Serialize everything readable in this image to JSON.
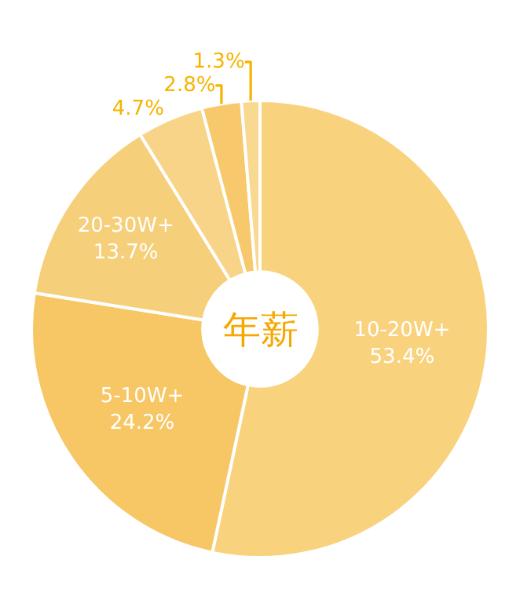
{
  "chart_data": {
    "type": "donut",
    "title": "年薪",
    "categories": [
      "10-20W+",
      "5-10W+",
      "20-30W+",
      null,
      null,
      null
    ],
    "values": [
      53.4,
      24.2,
      13.7,
      4.7,
      2.8,
      1.3
    ],
    "value_labels": [
      "53.4%",
      "24.2%",
      "13.7%",
      "4.7%",
      "2.8%",
      "1.3%"
    ],
    "colors": [
      "#f9d27e",
      "#f7c665",
      "#f6cf7a",
      "#f8d488",
      "#f7c96c",
      "#f9d890"
    ],
    "legend": false
  }
}
